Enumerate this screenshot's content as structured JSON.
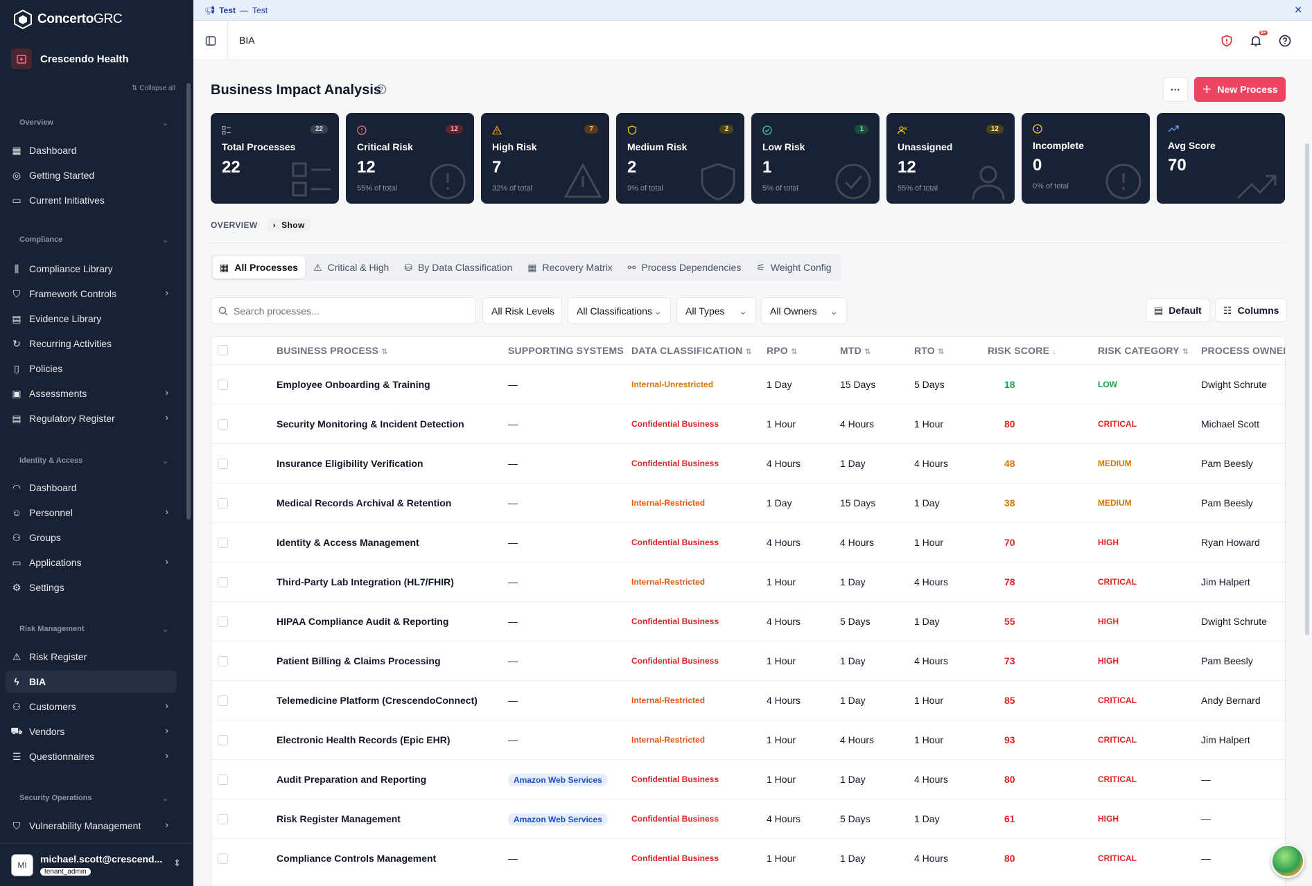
{
  "app": {
    "brand_main": "Concerto",
    "brand_suffix": "GRC",
    "org": "Crescendo Health",
    "collapse_all": "Collapse all"
  },
  "banner": {
    "label": "Test",
    "sep": "—",
    "text": "Test"
  },
  "topbar": {
    "breadcrumb": "BIA",
    "notif_badge": "9+"
  },
  "nav": {
    "sections": [
      {
        "title": "Overview"
      },
      {
        "title": "Compliance"
      },
      {
        "title": "Identity & Access"
      },
      {
        "title": "Risk Management"
      },
      {
        "title": "Security Operations"
      }
    ],
    "items": [
      {
        "label": "Dashboard",
        "icon": "dashboard-icon"
      },
      {
        "label": "Getting Started",
        "icon": "help-circle-icon"
      },
      {
        "label": "Current Initiatives",
        "icon": "calendar-icon"
      },
      {
        "label": "Compliance Library",
        "icon": "library-icon"
      },
      {
        "label": "Framework Controls",
        "icon": "shield-check-icon"
      },
      {
        "label": "Evidence Library",
        "icon": "archive-icon"
      },
      {
        "label": "Recurring Activities",
        "icon": "refresh-icon"
      },
      {
        "label": "Policies",
        "icon": "file-icon"
      },
      {
        "label": "Assessments",
        "icon": "clipboard-icon"
      },
      {
        "label": "Regulatory Register",
        "icon": "register-icon"
      },
      {
        "label": "Dashboard",
        "icon": "gauge-icon"
      },
      {
        "label": "Personnel",
        "icon": "user-icon"
      },
      {
        "label": "Groups",
        "icon": "users-icon"
      },
      {
        "label": "Applications",
        "icon": "app-window-icon"
      },
      {
        "label": "Settings",
        "icon": "gear-icon"
      },
      {
        "label": "Risk Register",
        "icon": "warning-icon"
      },
      {
        "label": "BIA",
        "icon": "zap-icon"
      },
      {
        "label": "Customers",
        "icon": "users-icon"
      },
      {
        "label": "Vendors",
        "icon": "truck-icon"
      },
      {
        "label": "Questionnaires",
        "icon": "list-icon"
      },
      {
        "label": "Vulnerability Management",
        "icon": "shield-icon"
      }
    ]
  },
  "user": {
    "initials": "MI",
    "name": "michael.scott@crescend...",
    "role": "tenant_admin"
  },
  "page": {
    "title": "Business Impact Analysis",
    "new_process": "New Process",
    "more": "···"
  },
  "cards": [
    {
      "label": "Total Processes",
      "value": "22",
      "count": "22",
      "sub": ""
    },
    {
      "label": "Critical Risk",
      "value": "12",
      "count": "12",
      "sub": "55% of total"
    },
    {
      "label": "High Risk",
      "value": "7",
      "count": "7",
      "sub": "32% of total"
    },
    {
      "label": "Medium Risk",
      "value": "2",
      "count": "2",
      "sub": "9% of total"
    },
    {
      "label": "Low Risk",
      "value": "1",
      "count": "1",
      "sub": "5% of total"
    },
    {
      "label": "Unassigned",
      "value": "12",
      "count": "12",
      "sub": "55% of total"
    },
    {
      "label": "Incomplete",
      "value": "0",
      "count": "",
      "sub": "0% of total"
    },
    {
      "label": "Avg Score",
      "value": "70",
      "count": "",
      "sub": ""
    }
  ],
  "overview": {
    "label": "OVERVIEW",
    "show": "Show"
  },
  "tabs": [
    "All Processes",
    "Critical & High",
    "By Data Classification",
    "Recovery Matrix",
    "Process Dependencies",
    "Weight Config"
  ],
  "filters": {
    "search_placeholder": "Search processes...",
    "risk": "All Risk Levels",
    "classification": "All Classifications",
    "types": "All Types",
    "owners": "All Owners",
    "default": "Default",
    "columns": "Columns"
  },
  "columns": [
    "BUSINESS PROCESS",
    "SUPPORTING SYSTEMS",
    "DATA CLASSIFICATION",
    "RPO",
    "MTD",
    "RTO",
    "RISK SCORE",
    "RISK CATEGORY",
    "PROCESS OWNER"
  ],
  "colors": {
    "critical": "#dc2626",
    "high": "#dc2626",
    "medium": "#d97706",
    "low": "#16a34a",
    "confidential": "#dc2626",
    "internal_restricted": "#ea580c",
    "internal_unrestricted": "#d97706"
  },
  "rows": [
    {
      "process": "Employee Onboarding & Training",
      "systems": "—",
      "classification": "Internal-Unrestricted",
      "rpo": "1 Day",
      "mtd": "15 Days",
      "rto": "5 Days",
      "score": "18",
      "category": "LOW",
      "owner": "Dwight Schrute"
    },
    {
      "process": "Security Monitoring & Incident Detection",
      "systems": "—",
      "classification": "Confidential Business",
      "rpo": "1 Hour",
      "mtd": "4 Hours",
      "rto": "1 Hour",
      "score": "80",
      "category": "CRITICAL",
      "owner": "Michael Scott"
    },
    {
      "process": "Insurance Eligibility Verification",
      "systems": "—",
      "classification": "Confidential Business",
      "rpo": "4 Hours",
      "mtd": "1 Day",
      "rto": "4 Hours",
      "score": "48",
      "category": "MEDIUM",
      "owner": "Pam Beesly"
    },
    {
      "process": "Medical Records Archival & Retention",
      "systems": "—",
      "classification": "Internal-Restricted",
      "rpo": "1 Day",
      "mtd": "15 Days",
      "rto": "1 Day",
      "score": "38",
      "category": "MEDIUM",
      "owner": "Pam Beesly"
    },
    {
      "process": "Identity & Access Management",
      "systems": "—",
      "classification": "Confidential Business",
      "rpo": "4 Hours",
      "mtd": "4 Hours",
      "rto": "1 Hour",
      "score": "70",
      "category": "HIGH",
      "owner": "Ryan Howard"
    },
    {
      "process": "Third-Party Lab Integration (HL7/FHIR)",
      "systems": "—",
      "classification": "Internal-Restricted",
      "rpo": "1 Hour",
      "mtd": "1 Day",
      "rto": "4 Hours",
      "score": "78",
      "category": "CRITICAL",
      "owner": "Jim Halpert"
    },
    {
      "process": "HIPAA Compliance Audit & Reporting",
      "systems": "—",
      "classification": "Confidential Business",
      "rpo": "4 Hours",
      "mtd": "5 Days",
      "rto": "1 Day",
      "score": "55",
      "category": "HIGH",
      "owner": "Dwight Schrute"
    },
    {
      "process": "Patient Billing & Claims Processing",
      "systems": "—",
      "classification": "Confidential Business",
      "rpo": "1 Hour",
      "mtd": "1 Day",
      "rto": "4 Hours",
      "score": "73",
      "category": "HIGH",
      "owner": "Pam Beesly"
    },
    {
      "process": "Telemedicine Platform (CrescendoConnect)",
      "systems": "—",
      "classification": "Internal-Restricted",
      "rpo": "4 Hours",
      "mtd": "1 Day",
      "rto": "1 Hour",
      "score": "85",
      "category": "CRITICAL",
      "owner": "Andy Bernard"
    },
    {
      "process": "Electronic Health Records (Epic EHR)",
      "systems": "—",
      "classification": "Internal-Restricted",
      "rpo": "1 Hour",
      "mtd": "4 Hours",
      "rto": "1 Hour",
      "score": "93",
      "category": "CRITICAL",
      "owner": "Jim Halpert"
    },
    {
      "process": "Audit Preparation and Reporting",
      "systems": "Amazon Web Services",
      "classification": "Confidential Business",
      "rpo": "1 Hour",
      "mtd": "1 Day",
      "rto": "4 Hours",
      "score": "80",
      "category": "CRITICAL",
      "owner": "—"
    },
    {
      "process": "Risk Register Management",
      "systems": "Amazon Web Services",
      "classification": "Confidential Business",
      "rpo": "4 Hours",
      "mtd": "5 Days",
      "rto": "1 Day",
      "score": "61",
      "category": "HIGH",
      "owner": "—"
    },
    {
      "process": "Compliance Controls Management",
      "systems": "—",
      "classification": "Confidential Business",
      "rpo": "1 Hour",
      "mtd": "1 Day",
      "rto": "4 Hours",
      "score": "80",
      "category": "CRITICAL",
      "owner": "—"
    }
  ]
}
